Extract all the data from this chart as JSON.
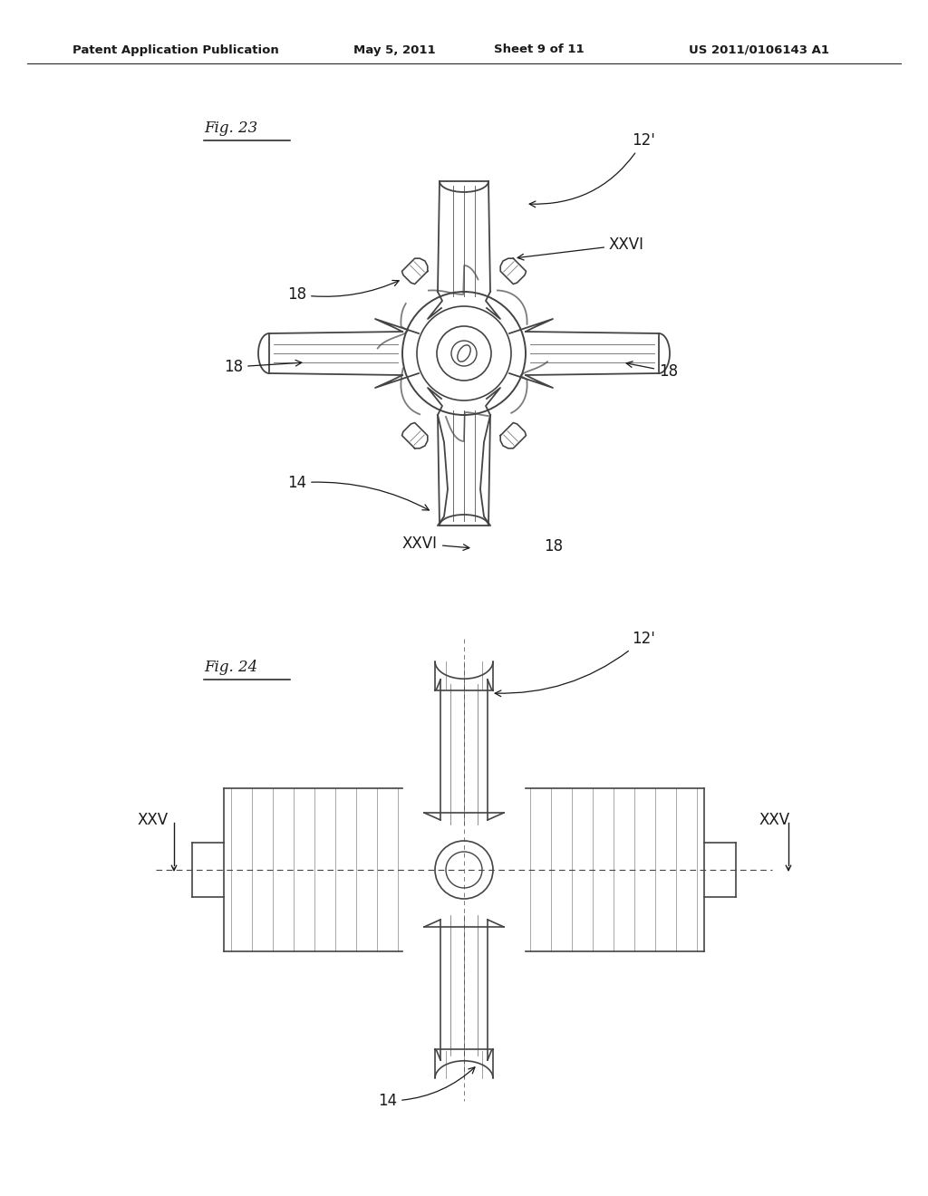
{
  "background_color": "#ffffff",
  "header_text": "Patent Application Publication",
  "header_date": "May 5, 2011",
  "header_sheet": "Sheet 9 of 11",
  "header_patent": "US 2011/0106143 A1",
  "fig23_label": "Fig. 23",
  "fig24_label": "Fig. 24",
  "line_color": "#2a2a2a",
  "text_color": "#1a1a1a",
  "gray_line": "#444444"
}
